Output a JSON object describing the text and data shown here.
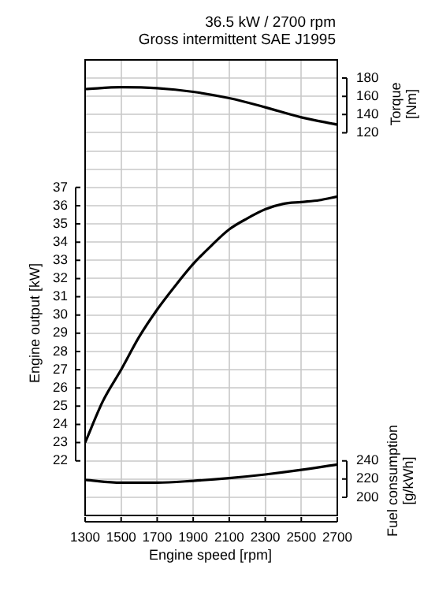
{
  "chart_data": {
    "type": "line",
    "title": "36.5 kW / 2700 rpm",
    "subtitle": "Gross intermittent SAE J1995",
    "xlabel": "Engine speed [rpm]",
    "ylabel": "Engine output [kW]",
    "y2label": "Torque [Nm]",
    "y3label": "Fuel consumption [g/kWh]",
    "xlim": [
      1300,
      2700
    ],
    "xticks": [
      1300,
      1500,
      1700,
      1900,
      2100,
      2300,
      2500,
      2700
    ],
    "ylim": [
      19,
      44
    ],
    "yticks": [
      {
        "value": 19,
        "label": null
      },
      {
        "value": 20,
        "label": null
      },
      {
        "value": 21,
        "label": null
      },
      22,
      23,
      24,
      25,
      26,
      27,
      28,
      29,
      30,
      31,
      32,
      33,
      34,
      35,
      36,
      37,
      {
        "value": 38,
        "label": null
      },
      {
        "value": 39,
        "label": null
      },
      {
        "value": 40,
        "label": null
      },
      {
        "value": 41,
        "label": null
      },
      {
        "value": 42,
        "label": null
      },
      {
        "value": 43,
        "label": null
      },
      {
        "value": 44,
        "label": null
      }
    ],
    "y2lim": [
      -300,
      200
    ],
    "y2ticks": [
      120,
      140,
      160,
      180
    ],
    "y3lim": [
      180,
      680
    ],
    "y3ticks": [
      200,
      220,
      240
    ],
    "grid": true,
    "marker": "none",
    "line_style": "solid",
    "series": [
      {
        "color": "#000000",
        "x": [
          1300,
          1400,
          1500,
          1600,
          1700,
          1800,
          1900,
          2000,
          2100,
          2200,
          2300,
          2400,
          2500,
          2600,
          2700
        ],
        "values": [
          23,
          25.3,
          27,
          28.8,
          30.3,
          31.6,
          32.8,
          33.8,
          34.7,
          35.3,
          35.8,
          36.1,
          36.2,
          36.3,
          36.5
        ]
      },
      {
        "color": "#000000",
        "axis": "y2",
        "x": [
          1300,
          1500,
          1700,
          1900,
          2100,
          2300,
          2500,
          2700
        ],
        "values": [
          168,
          170,
          169,
          165,
          158,
          148,
          137,
          129
        ]
      },
      {
        "color": "#000000",
        "axis": "y3",
        "x": [
          1300,
          1500,
          1700,
          1900,
          2100,
          2300,
          2500,
          2700
        ],
        "values": [
          219,
          216,
          216,
          218,
          221,
          225,
          230,
          236
        ]
      }
    ]
  }
}
